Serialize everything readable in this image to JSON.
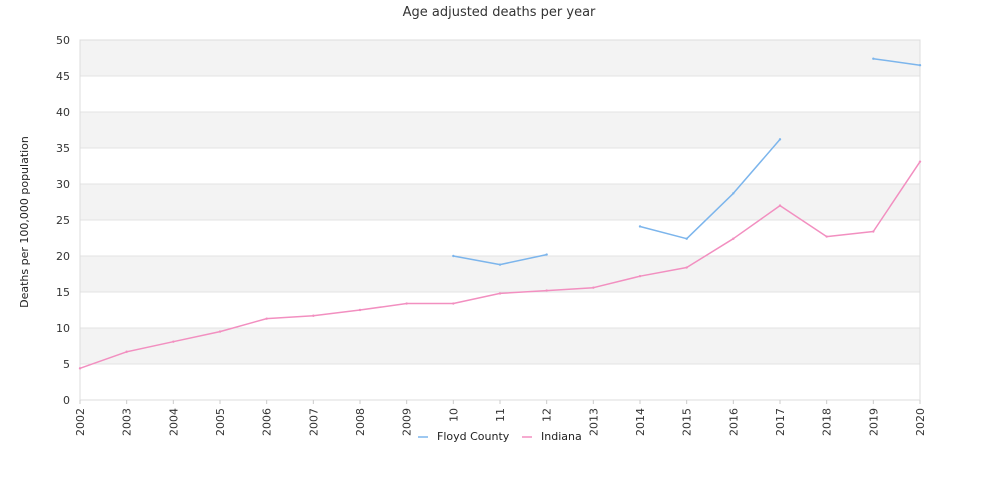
{
  "chart_data": {
    "type": "line",
    "title": "Age adjusted deaths per year",
    "xlabel": "",
    "ylabel": "Deaths per 100,000 population",
    "ylim": [
      0,
      50
    ],
    "yticks": [
      "0",
      "5",
      "10",
      "15",
      "20",
      "25",
      "30",
      "35",
      "40",
      "45",
      "50"
    ],
    "categories": [
      "2002",
      "2003",
      "2004",
      "2005",
      "2006",
      "2007",
      "2008",
      "2009",
      "2010",
      "2011",
      "2012",
      "2013",
      "2014",
      "2015",
      "2016",
      "2017",
      "2018",
      "2019",
      "2020"
    ],
    "xtick_labels": [
      "2002",
      "2003",
      "2004",
      "2005",
      "2006",
      "2007",
      "2008",
      "2009",
      "10",
      "11",
      "12",
      "2013",
      "2014",
      "2015",
      "2016",
      "2017",
      "2018",
      "2019",
      "2020"
    ],
    "grid": "horizontal alternating bands",
    "legend_position": "bottom",
    "series": [
      {
        "name": "Floyd County",
        "color": "#7cb5ec",
        "values": [
          null,
          null,
          null,
          null,
          null,
          null,
          null,
          null,
          20.0,
          18.8,
          20.2,
          null,
          24.1,
          22.4,
          28.7,
          36.2,
          null,
          47.4,
          46.5
        ]
      },
      {
        "name": "Indiana",
        "color": "#f28fc0",
        "values": [
          4.4,
          6.7,
          8.1,
          9.5,
          11.3,
          11.7,
          12.5,
          13.4,
          13.4,
          14.8,
          15.2,
          15.6,
          17.2,
          18.4,
          22.4,
          27.0,
          22.7,
          23.4,
          33.1
        ]
      }
    ]
  }
}
